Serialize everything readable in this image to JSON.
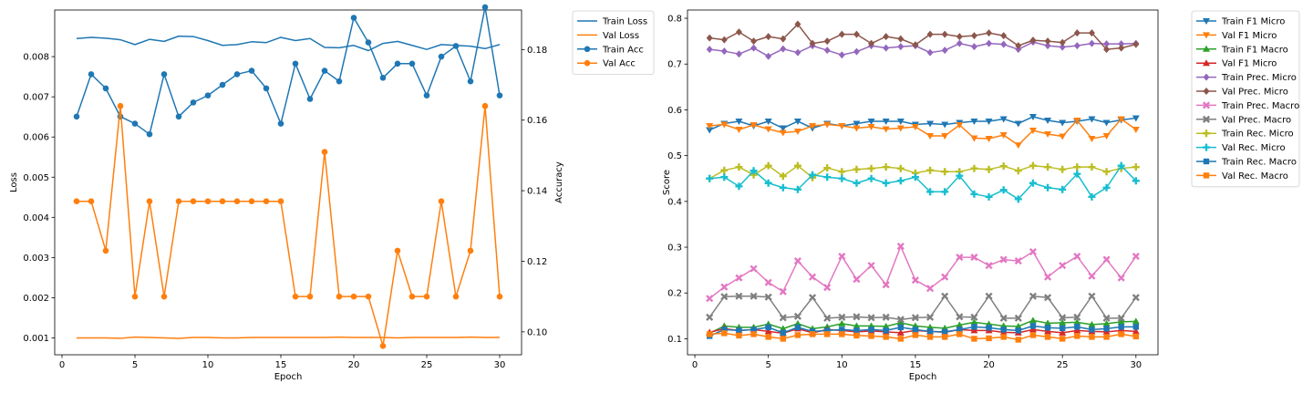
{
  "chart_data": [
    {
      "type": "line",
      "xlabel": "Epoch",
      "ylabel": "Loss",
      "ylabel_right": "Accuracy",
      "xlim": [
        -0.5,
        31.5
      ],
      "ylim": [
        0.00058,
        0.00916
      ],
      "ylim_right": [
        0.0935,
        0.1912
      ],
      "xticks": [
        0,
        5,
        10,
        15,
        20,
        25,
        30
      ],
      "yticks": [
        0.001,
        0.002,
        0.003,
        0.004,
        0.005,
        0.006,
        0.007,
        0.008
      ],
      "yticks_right": [
        0.1,
        0.12,
        0.14,
        0.16,
        0.18
      ],
      "legend_position": "outside top-right",
      "x": [
        1,
        2,
        3,
        4,
        5,
        6,
        7,
        8,
        9,
        10,
        11,
        12,
        13,
        14,
        15,
        16,
        17,
        18,
        19,
        20,
        21,
        22,
        23,
        24,
        25,
        26,
        27,
        28,
        29,
        30
      ],
      "series": [
        {
          "name": "Train Loss",
          "axis": "left",
          "color": "#1f77b4",
          "marker": "none",
          "values": [
            0.00845,
            0.00848,
            0.00846,
            0.00842,
            0.0083,
            0.00843,
            0.00838,
            0.00851,
            0.0085,
            0.0084,
            0.00828,
            0.0083,
            0.00837,
            0.00835,
            0.00848,
            0.0084,
            0.00845,
            0.00823,
            0.00822,
            0.00828,
            0.00815,
            0.00833,
            0.00838,
            0.00828,
            0.00818,
            0.0083,
            0.00828,
            0.00826,
            0.0082,
            0.0083
          ]
        },
        {
          "name": "Val Loss",
          "axis": "left",
          "color": "#ff7f0e",
          "marker": "none",
          "values": [
            0.001,
            0.001,
            0.001,
            0.00099,
            0.00102,
            0.00101,
            0.001,
            0.00099,
            0.00101,
            0.00101,
            0.001,
            0.001,
            0.00101,
            0.00101,
            0.00101,
            0.00101,
            0.00101,
            0.00101,
            0.00102,
            0.00101,
            0.00101,
            0.00101,
            0.001,
            0.00101,
            0.00101,
            0.00101,
            0.00101,
            0.00102,
            0.00101,
            0.00101
          ]
        },
        {
          "name": "Train Acc",
          "axis": "right",
          "color": "#1f77b4",
          "marker": "circle",
          "values": [
            0.161,
            0.173,
            0.169,
            0.161,
            0.159,
            0.156,
            0.173,
            0.161,
            0.165,
            0.167,
            0.17,
            0.173,
            0.174,
            0.169,
            0.159,
            0.176,
            0.166,
            0.174,
            0.171,
            0.189,
            0.182,
            0.172,
            0.176,
            0.176,
            0.167,
            0.178,
            0.181,
            0.171,
            0.192,
            0.167
          ]
        },
        {
          "name": "Val Acc",
          "axis": "right",
          "color": "#ff7f0e",
          "marker": "circle",
          "values": [
            0.137,
            0.137,
            0.123,
            0.164,
            0.11,
            0.137,
            0.11,
            0.137,
            0.137,
            0.137,
            0.137,
            0.137,
            0.137,
            0.137,
            0.137,
            0.11,
            0.11,
            0.151,
            0.11,
            0.11,
            0.11,
            0.096,
            0.123,
            0.11,
            0.11,
            0.137,
            0.11,
            0.123,
            0.164,
            0.11
          ]
        }
      ]
    },
    {
      "type": "line",
      "xlabel": "Epoch",
      "ylabel": "Score",
      "xlim": [
        -0.5,
        31.5
      ],
      "ylim": [
        0.065,
        0.818
      ],
      "xticks": [
        0,
        5,
        10,
        15,
        20,
        25,
        30
      ],
      "yticks": [
        0.1,
        0.2,
        0.3,
        0.4,
        0.5,
        0.6,
        0.7,
        0.8
      ],
      "legend_position": "outside top-right",
      "x": [
        1,
        2,
        3,
        4,
        5,
        6,
        7,
        8,
        9,
        10,
        11,
        12,
        13,
        14,
        15,
        16,
        17,
        18,
        19,
        20,
        21,
        22,
        23,
        24,
        25,
        26,
        27,
        28,
        29,
        30
      ],
      "series": [
        {
          "name": "Train F1 Micro",
          "color": "#1f77b4",
          "marker": "tri_down",
          "values": [
            0.556,
            0.57,
            0.575,
            0.565,
            0.575,
            0.56,
            0.575,
            0.56,
            0.57,
            0.565,
            0.57,
            0.575,
            0.575,
            0.575,
            0.568,
            0.57,
            0.568,
            0.572,
            0.575,
            0.575,
            0.58,
            0.57,
            0.585,
            0.577,
            0.572,
            0.575,
            0.58,
            0.572,
            0.578,
            0.582
          ]
        },
        {
          "name": "Val F1 Micro",
          "color": "#ff7f0e",
          "marker": "tri_down",
          "values": [
            0.565,
            0.568,
            0.557,
            0.567,
            0.558,
            0.55,
            0.553,
            0.565,
            0.568,
            0.565,
            0.56,
            0.563,
            0.558,
            0.56,
            0.563,
            0.543,
            0.543,
            0.567,
            0.538,
            0.537,
            0.545,
            0.523,
            0.555,
            0.547,
            0.542,
            0.577,
            0.537,
            0.543,
            0.58,
            0.557
          ]
        },
        {
          "name": "Train F1 Macro",
          "color": "#2ca02c",
          "marker": "tri_up",
          "values": [
            0.112,
            0.128,
            0.125,
            0.125,
            0.132,
            0.122,
            0.133,
            0.122,
            0.126,
            0.133,
            0.128,
            0.128,
            0.127,
            0.135,
            0.128,
            0.125,
            0.123,
            0.13,
            0.136,
            0.132,
            0.128,
            0.127,
            0.14,
            0.134,
            0.135,
            0.136,
            0.131,
            0.133,
            0.137,
            0.138
          ]
        },
        {
          "name": "Val F1 Micro",
          "color": "#d62728",
          "marker": "tri_up",
          "values": [
            0.114,
            0.122,
            0.118,
            0.12,
            0.116,
            0.112,
            0.122,
            0.113,
            0.12,
            0.118,
            0.115,
            0.117,
            0.115,
            0.113,
            0.118,
            0.116,
            0.114,
            0.12,
            0.118,
            0.118,
            0.114,
            0.113,
            0.12,
            0.116,
            0.113,
            0.118,
            0.116,
            0.115,
            0.118,
            0.116
          ]
        },
        {
          "name": "Train Prec. Micro",
          "color": "#9467bd",
          "marker": "diamond",
          "values": [
            0.732,
            0.728,
            0.722,
            0.735,
            0.717,
            0.733,
            0.725,
            0.74,
            0.73,
            0.72,
            0.727,
            0.74,
            0.735,
            0.738,
            0.74,
            0.725,
            0.73,
            0.745,
            0.738,
            0.745,
            0.743,
            0.732,
            0.748,
            0.74,
            0.737,
            0.74,
            0.745,
            0.744,
            0.744,
            0.745
          ]
        },
        {
          "name": "Val Prec. Micro",
          "color": "#8c564b",
          "marker": "diamond",
          "values": [
            0.757,
            0.753,
            0.77,
            0.75,
            0.76,
            0.755,
            0.787,
            0.745,
            0.75,
            0.765,
            0.765,
            0.745,
            0.76,
            0.755,
            0.742,
            0.765,
            0.765,
            0.76,
            0.762,
            0.768,
            0.762,
            0.74,
            0.752,
            0.75,
            0.747,
            0.768,
            0.768,
            0.732,
            0.735,
            0.743
          ]
        },
        {
          "name": "Train Prec. Macro",
          "color": "#e377c2",
          "marker": "x",
          "values": [
            0.188,
            0.213,
            0.233,
            0.253,
            0.223,
            0.203,
            0.27,
            0.235,
            0.212,
            0.28,
            0.23,
            0.26,
            0.218,
            0.302,
            0.228,
            0.21,
            0.235,
            0.278,
            0.278,
            0.26,
            0.273,
            0.27,
            0.29,
            0.235,
            0.26,
            0.28,
            0.237,
            0.273,
            0.233,
            0.28
          ]
        },
        {
          "name": "Val Prec. Macro",
          "color": "#7f7f7f",
          "marker": "x",
          "values": [
            0.147,
            0.192,
            0.193,
            0.193,
            0.191,
            0.146,
            0.149,
            0.19,
            0.145,
            0.147,
            0.148,
            0.146,
            0.147,
            0.142,
            0.146,
            0.147,
            0.193,
            0.148,
            0.147,
            0.193,
            0.145,
            0.145,
            0.193,
            0.19,
            0.146,
            0.147,
            0.193,
            0.145,
            0.145,
            0.19
          ]
        },
        {
          "name": "Train Rec. Micro",
          "color": "#bcbd22",
          "marker": "plus",
          "values": [
            0.45,
            0.468,
            0.475,
            0.458,
            0.478,
            0.455,
            0.478,
            0.452,
            0.473,
            0.465,
            0.47,
            0.472,
            0.475,
            0.472,
            0.462,
            0.468,
            0.465,
            0.465,
            0.472,
            0.47,
            0.477,
            0.467,
            0.478,
            0.475,
            0.47,
            0.475,
            0.475,
            0.465,
            0.472,
            0.475
          ]
        },
        {
          "name": "Val Rec. Micro",
          "color": "#17becf",
          "marker": "plus",
          "values": [
            0.45,
            0.453,
            0.433,
            0.467,
            0.44,
            0.43,
            0.426,
            0.458,
            0.453,
            0.45,
            0.44,
            0.45,
            0.44,
            0.445,
            0.453,
            0.421,
            0.421,
            0.456,
            0.416,
            0.41,
            0.425,
            0.405,
            0.44,
            0.43,
            0.426,
            0.46,
            0.41,
            0.43,
            0.478,
            0.445
          ]
        },
        {
          "name": "Train Rec. Macro",
          "color": "#1f77b4",
          "marker": "square",
          "values": [
            0.106,
            0.12,
            0.118,
            0.12,
            0.125,
            0.113,
            0.125,
            0.116,
            0.118,
            0.12,
            0.118,
            0.12,
            0.118,
            0.125,
            0.12,
            0.116,
            0.115,
            0.12,
            0.126,
            0.124,
            0.12,
            0.118,
            0.128,
            0.124,
            0.123,
            0.126,
            0.12,
            0.122,
            0.126,
            0.126
          ]
        },
        {
          "name": "Val Rec. Macro",
          "color": "#ff7f0e",
          "marker": "square",
          "values": [
            0.11,
            0.112,
            0.107,
            0.11,
            0.104,
            0.1,
            0.108,
            0.11,
            0.11,
            0.11,
            0.107,
            0.106,
            0.104,
            0.1,
            0.108,
            0.104,
            0.104,
            0.11,
            0.1,
            0.101,
            0.104,
            0.098,
            0.108,
            0.104,
            0.1,
            0.106,
            0.104,
            0.104,
            0.11,
            0.105
          ]
        }
      ]
    }
  ]
}
